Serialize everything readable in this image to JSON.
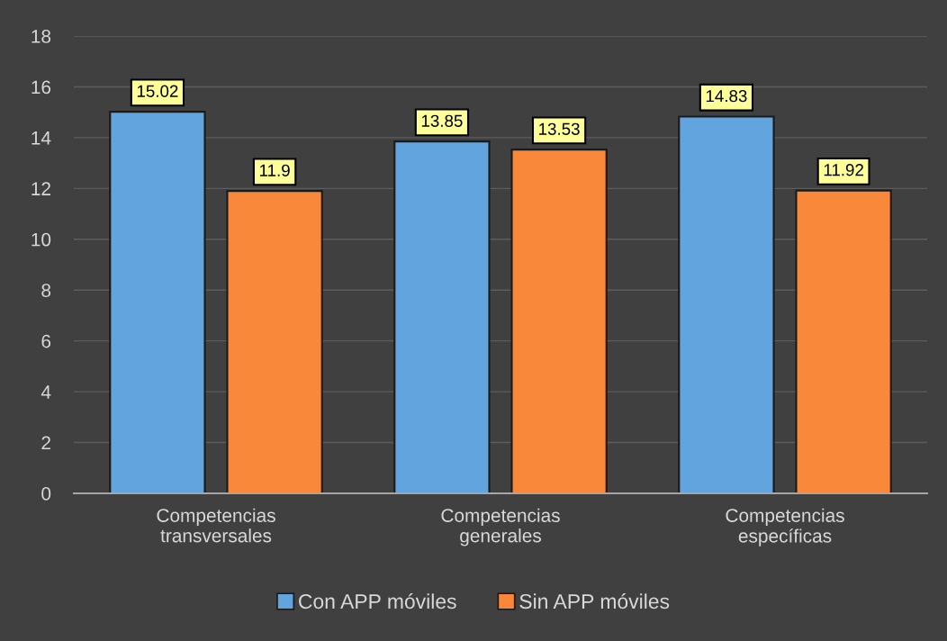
{
  "chart_data": {
    "type": "bar",
    "categories": [
      "Competencias\ntransversales",
      "Competencias\ngenerales",
      "Competencias\nespecíficas"
    ],
    "series": [
      {
        "name": "Con APP móviles",
        "color": "#62a4dd",
        "values": [
          15.02,
          13.85,
          14.83
        ]
      },
      {
        "name": "Sin APP móviles",
        "color": "#f9883a",
        "values": [
          11.9,
          13.53,
          11.92
        ]
      }
    ],
    "ylim": [
      0,
      18
    ],
    "yticks": [
      0,
      2,
      4,
      6,
      8,
      10,
      12,
      14,
      16,
      18
    ],
    "grid": "y",
    "legend": "bottom",
    "data_labels": true
  }
}
